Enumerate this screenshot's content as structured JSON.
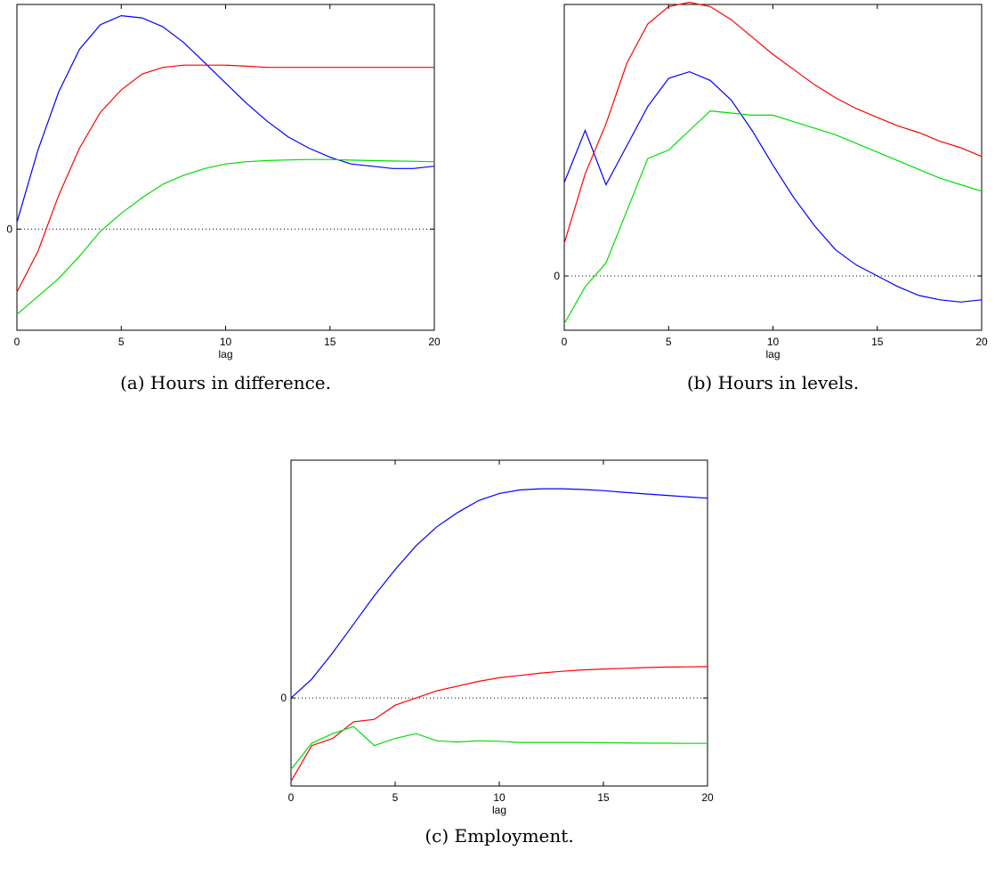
{
  "chart_data": [
    {
      "type": "line",
      "caption": "(a) Hours in difference.",
      "xlabel": "lag",
      "xlim": [
        0,
        20
      ],
      "xticks": [
        0,
        5,
        10,
        15,
        20
      ],
      "ylim": [
        -0.45,
        1.0
      ],
      "yticks": [
        0
      ],
      "ytick_labels": [
        "0"
      ],
      "zero_reference_line": true,
      "series": [
        {
          "color": "#0000ff",
          "x": [
            0,
            1,
            2,
            3,
            4,
            5,
            6,
            7,
            8,
            9,
            10,
            11,
            12,
            13,
            14,
            15,
            16,
            17,
            18,
            19,
            20
          ],
          "y": [
            0.03,
            0.35,
            0.61,
            0.8,
            0.91,
            0.95,
            0.94,
            0.9,
            0.83,
            0.74,
            0.65,
            0.56,
            0.48,
            0.41,
            0.36,
            0.32,
            0.29,
            0.28,
            0.27,
            0.27,
            0.28
          ]
        },
        {
          "color": "#ff0000",
          "x": [
            0,
            1,
            2,
            3,
            4,
            5,
            6,
            7,
            8,
            9,
            10,
            11,
            12,
            13,
            14,
            15,
            16,
            17,
            18,
            19,
            20
          ],
          "y": [
            -0.28,
            -0.1,
            0.15,
            0.36,
            0.52,
            0.62,
            0.69,
            0.72,
            0.73,
            0.73,
            0.73,
            0.725,
            0.72,
            0.72,
            0.72,
            0.72,
            0.72,
            0.72,
            0.72,
            0.72,
            0.72
          ]
        },
        {
          "color": "#00dd00",
          "x": [
            0,
            1,
            2,
            3,
            4,
            5,
            6,
            7,
            8,
            9,
            10,
            11,
            12,
            13,
            14,
            15,
            16,
            17,
            18,
            19,
            20
          ],
          "y": [
            -0.38,
            -0.3,
            -0.22,
            -0.12,
            -0.01,
            0.07,
            0.14,
            0.2,
            0.24,
            0.27,
            0.29,
            0.3,
            0.305,
            0.308,
            0.31,
            0.31,
            0.307,
            0.305,
            0.303,
            0.302,
            0.3
          ]
        }
      ]
    },
    {
      "type": "line",
      "caption": "(b) Hours in levels.",
      "xlabel": "lag",
      "xlim": [
        0,
        20
      ],
      "xticks": [
        0,
        5,
        10,
        15,
        20
      ],
      "ylim": [
        -0.25,
        1.25
      ],
      "yticks": [
        0
      ],
      "ytick_labels": [
        "0"
      ],
      "zero_reference_line": true,
      "series": [
        {
          "color": "#0000ff",
          "x": [
            0,
            1,
            2,
            3,
            4,
            5,
            6,
            7,
            8,
            9,
            10,
            11,
            12,
            13,
            14,
            15,
            16,
            17,
            18,
            19,
            20
          ],
          "y": [
            0.43,
            0.67,
            0.42,
            0.6,
            0.78,
            0.91,
            0.94,
            0.9,
            0.81,
            0.67,
            0.51,
            0.36,
            0.23,
            0.12,
            0.05,
            0.0,
            -0.05,
            -0.09,
            -0.11,
            -0.12,
            -0.11
          ]
        },
        {
          "color": "#ff0000",
          "x": [
            0,
            1,
            2,
            3,
            4,
            5,
            6,
            7,
            8,
            9,
            10,
            11,
            12,
            13,
            14,
            15,
            16,
            17,
            18,
            19,
            20
          ],
          "y": [
            0.15,
            0.47,
            0.7,
            0.98,
            1.16,
            1.24,
            1.26,
            1.24,
            1.18,
            1.1,
            1.02,
            0.95,
            0.88,
            0.82,
            0.77,
            0.73,
            0.69,
            0.66,
            0.62,
            0.59,
            0.55
          ]
        },
        {
          "color": "#00dd00",
          "x": [
            0,
            1,
            2,
            3,
            4,
            5,
            6,
            7,
            8,
            9,
            10,
            11,
            12,
            13,
            14,
            15,
            16,
            17,
            18,
            19,
            20
          ],
          "y": [
            -0.22,
            -0.05,
            0.06,
            0.3,
            0.54,
            0.58,
            0.67,
            0.76,
            0.75,
            0.74,
            0.74,
            0.71,
            0.68,
            0.65,
            0.61,
            0.57,
            0.53,
            0.49,
            0.45,
            0.42,
            0.39
          ]
        }
      ]
    },
    {
      "type": "line",
      "caption": "(c) Employment.",
      "xlabel": "lag",
      "xlim": [
        0,
        20
      ],
      "xticks": [
        0,
        5,
        10,
        15,
        20
      ],
      "ylim": [
        -0.37,
        1.0
      ],
      "yticks": [
        0
      ],
      "ytick_labels": [
        "0"
      ],
      "zero_reference_line": true,
      "series": [
        {
          "color": "#0000ff",
          "x": [
            0,
            1,
            2,
            3,
            4,
            5,
            6,
            7,
            8,
            9,
            10,
            11,
            12,
            13,
            14,
            15,
            16,
            17,
            18,
            19,
            20
          ],
          "y": [
            0.0,
            0.08,
            0.19,
            0.31,
            0.43,
            0.54,
            0.64,
            0.72,
            0.78,
            0.83,
            0.86,
            0.875,
            0.88,
            0.88,
            0.877,
            0.872,
            0.865,
            0.858,
            0.852,
            0.846,
            0.84
          ]
        },
        {
          "color": "#ff0000",
          "x": [
            0,
            1,
            2,
            3,
            4,
            5,
            6,
            7,
            8,
            9,
            10,
            11,
            12,
            13,
            14,
            15,
            16,
            17,
            18,
            19,
            20
          ],
          "y": [
            -0.35,
            -0.2,
            -0.17,
            -0.1,
            -0.09,
            -0.03,
            0.0,
            0.03,
            0.05,
            0.07,
            0.085,
            0.095,
            0.105,
            0.112,
            0.118,
            0.122,
            0.125,
            0.128,
            0.13,
            0.131,
            0.132
          ]
        },
        {
          "color": "#00dd00",
          "x": [
            0,
            1,
            2,
            3,
            4,
            5,
            6,
            7,
            8,
            9,
            10,
            11,
            12,
            13,
            14,
            15,
            16,
            17,
            18,
            19,
            20
          ],
          "y": [
            -0.3,
            -0.19,
            -0.15,
            -0.12,
            -0.2,
            -0.17,
            -0.15,
            -0.18,
            -0.185,
            -0.18,
            -0.182,
            -0.187,
            -0.187,
            -0.187,
            -0.187,
            -0.188,
            -0.189,
            -0.19,
            -0.19,
            -0.191,
            -0.191
          ]
        }
      ]
    }
  ]
}
